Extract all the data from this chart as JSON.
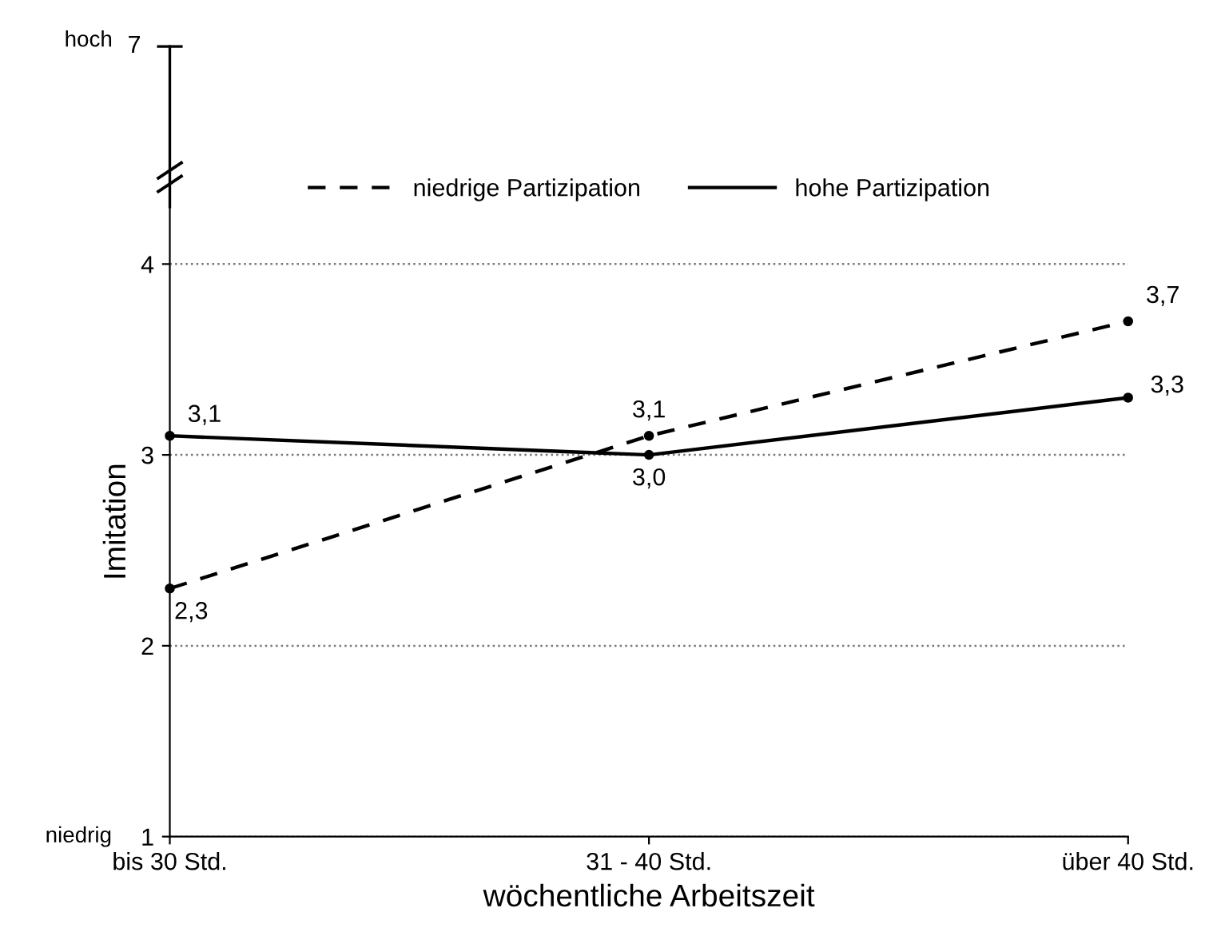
{
  "chart_data": {
    "type": "line",
    "xlabel": "wöchentliche Arbeitszeit",
    "ylabel": "Imitation",
    "categories": [
      "bis 30 Std.",
      "31 - 40 Std.",
      "über 40 Std."
    ],
    "series": [
      {
        "name": "niedrige Partizipation",
        "color": "#000000",
        "line_style": "dashed",
        "values": [
          2.3,
          3.1,
          3.7
        ],
        "value_labels": [
          "2,3",
          "3,1",
          "3,7"
        ]
      },
      {
        "name": "hohe Partizipation",
        "color": "#000000",
        "line_style": "solid",
        "values": [
          3.1,
          3.0,
          3.3
        ],
        "value_labels": [
          "3,1",
          "3,0",
          "3,3"
        ]
      }
    ],
    "ylim": [
      1,
      4.3
    ],
    "yticks": [
      1,
      2,
      3,
      4
    ],
    "grid": "y",
    "legend": "top",
    "marker": "circle",
    "annotations": [
      "7",
      "hoch",
      "niedrig"
    ]
  }
}
